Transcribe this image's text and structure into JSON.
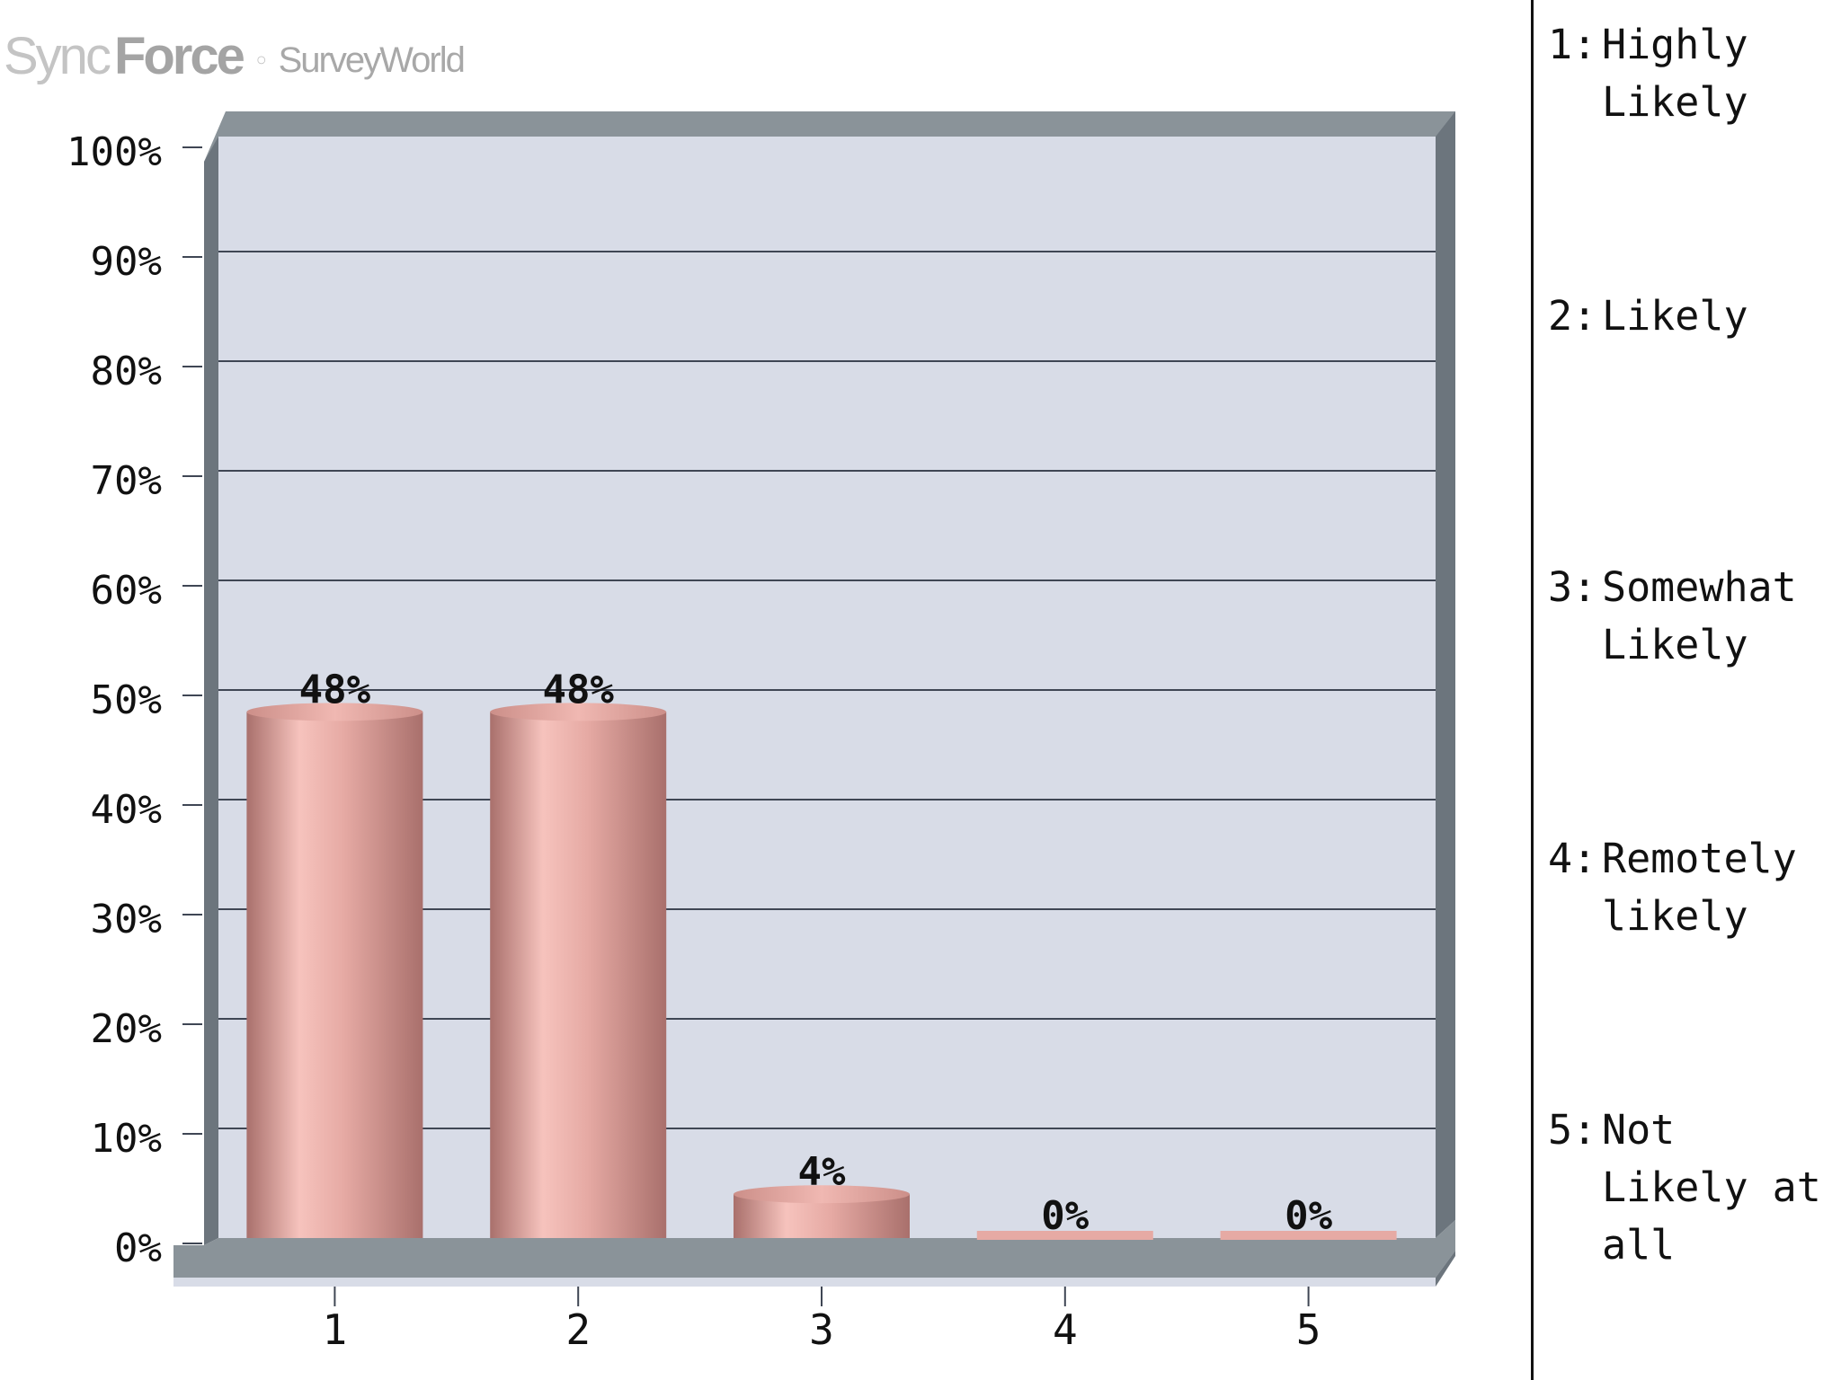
{
  "logo": {
    "text_sync": "Sync",
    "text_force": "Force",
    "text_survey": "SurveyWorld"
  },
  "colors": {
    "plot_bg": "#d8dce7",
    "frame": "#8a9399",
    "frame_dark": "#6c757d",
    "grid": "#3f4654",
    "bar": "#e6aaa4",
    "bar_dark": "#a9706c",
    "text": "#111111"
  },
  "legend": {
    "items": [
      {
        "num": "1:",
        "text": "Highly Likely"
      },
      {
        "num": "2:",
        "text": "Likely"
      },
      {
        "num": "3:",
        "text": "Somewhat Likely"
      },
      {
        "num": "4:",
        "text": "Remotely likely"
      },
      {
        "num": "5:",
        "text": "Not Likely at all"
      }
    ]
  },
  "chart_data": {
    "type": "bar",
    "categories": [
      "1",
      "2",
      "3",
      "4",
      "5"
    ],
    "values": [
      48,
      48,
      4,
      0,
      0
    ],
    "value_labels": [
      "48%",
      "48%",
      "4%",
      "0%",
      "0%"
    ],
    "ylim": [
      0,
      100
    ],
    "yticks": [
      0,
      10,
      20,
      30,
      40,
      50,
      60,
      70,
      80,
      90,
      100
    ],
    "ytick_labels": [
      "0%",
      "10%",
      "20%",
      "30%",
      "40%",
      "50%",
      "60%",
      "70%",
      "80%",
      "90%",
      "100%"
    ],
    "grid": true,
    "legend_placement": "right",
    "title": "",
    "xlabel": "",
    "ylabel": ""
  }
}
